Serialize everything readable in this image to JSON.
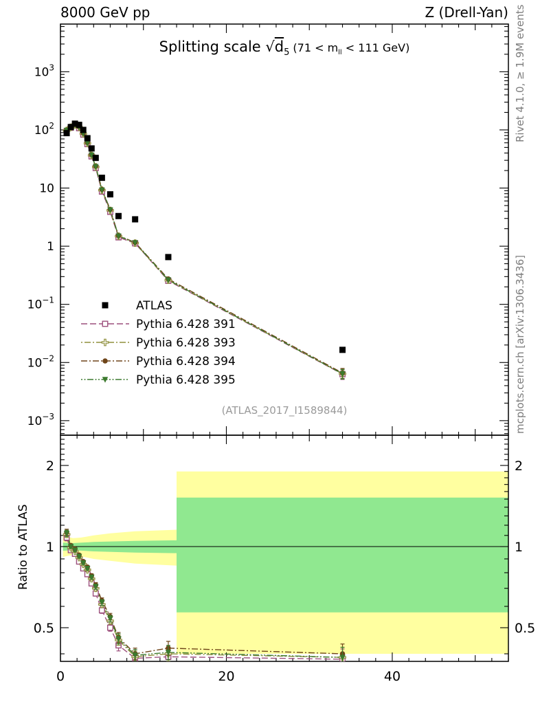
{
  "header": {
    "left": "8000 GeV pp",
    "right": "Z (Drell-Yan)"
  },
  "title": {
    "prefix": "Splitting scale ",
    "sqrt": "√",
    "radicand": "d",
    "radicand_sub": "5",
    "cut_pre": "(71 < m",
    "cut_sub": "ll",
    "cut_post": " < 111 GeV)"
  },
  "side_text": {
    "top": "Rivet 4.1.0, ≥ 1.9M events",
    "bottom": "mcplots.cern.ch [arXiv:1306.3436]"
  },
  "watermark": "(ATLAS_2017_I1589844)",
  "ratio_label": "Ratio to ATLAS",
  "colors": {
    "band_yellow": "#ffffa0",
    "band_green": "#90e890",
    "frame": "#000000",
    "gray_text": "#7d7d7d"
  },
  "chart_data": {
    "type": "scatter",
    "title": "Splitting scale sqrt(d5) (71 < mll < 111 GeV)",
    "x_axis": {
      "min": 0,
      "max": 54,
      "major_ticks": [
        0,
        20,
        40
      ],
      "major_labels": [
        "0",
        "20",
        "40"
      ],
      "medium_ticks": [
        10,
        30,
        50
      ],
      "minor_step": 2
    },
    "main_axis": {
      "scale": "log",
      "log_min": -3.25,
      "log_max": 3.82,
      "tick_labels": [
        {
          "base": "10",
          "sup": "3",
          "value": 1000
        },
        {
          "base": "10",
          "sup": "2",
          "value": 100
        },
        {
          "base": "10",
          "sup": "",
          "value": 10
        },
        {
          "base": "1",
          "sup": "",
          "value": 1
        },
        {
          "base": "10",
          "sup": "−1",
          "value": 0.1
        },
        {
          "base": "10",
          "sup": "−2",
          "value": 0.01
        },
        {
          "base": "10",
          "sup": "−3",
          "value": 0.001
        }
      ]
    },
    "ratio_axis": {
      "scale": "log",
      "min": 0.375,
      "max": 2.59,
      "ticks": [
        {
          "label": "2",
          "value": 2
        },
        {
          "label": "1",
          "value": 1
        },
        {
          "label": "0.5",
          "value": 0.5
        }
      ],
      "minor_ticks": [
        0.4,
        0.6,
        0.7,
        0.8,
        0.9,
        1.1,
        1.2,
        1.3,
        1.4,
        1.5,
        1.6,
        1.7,
        1.8,
        1.9,
        2.1,
        2.2,
        2.3,
        2.4,
        2.5
      ]
    },
    "x": [
      0.75,
      1.25,
      1.75,
      2.25,
      2.75,
      3.25,
      3.75,
      4.25,
      5,
      6,
      7,
      9,
      13,
      34
    ],
    "reference": {
      "name": "ATLAS",
      "marker": "square-filled",
      "color": "#000000",
      "y": [
        88,
        112,
        128,
        122,
        100,
        72,
        48,
        33,
        15,
        7.8,
        3.3,
        2.9,
        0.65,
        0.0165
      ]
    },
    "series": [
      {
        "name": "Pythia 6.428 391",
        "color": "#9c4f7c",
        "marker": "square-open",
        "dash": "9 4",
        "y": [
          95,
          109,
          120,
          107,
          83,
          57,
          35,
          22.1,
          8.7,
          3.9,
          1.42,
          1.12,
          0.254,
          0.0063
        ],
        "ratio": [
          1.08,
          0.97,
          0.94,
          0.88,
          0.83,
          0.79,
          0.73,
          0.67,
          0.58,
          0.5,
          0.43,
          0.385,
          0.39,
          0.382
        ],
        "ratio_err": [
          0.03,
          0.012,
          0.01,
          0.01,
          0.01,
          0.01,
          0.012,
          0.015,
          0.015,
          0.015,
          0.02,
          0.02,
          0.025,
          0.035
        ],
        "y_err_last": 0.0012
      },
      {
        "name": "Pythia 6.428 393",
        "color": "#8f8f3c",
        "marker": "plus-open",
        "dash": "2 3 9 3",
        "y": [
          97.5,
          111,
          123,
          111,
          86,
          59,
          36.5,
          23.1,
          9.2,
          4.13,
          1.49,
          1.13,
          0.26,
          0.0064
        ],
        "ratio": [
          1.11,
          0.99,
          0.96,
          0.91,
          0.86,
          0.82,
          0.76,
          0.7,
          0.61,
          0.53,
          0.45,
          0.39,
          0.4,
          0.388
        ],
        "ratio_err": [
          0.03,
          0.012,
          0.01,
          0.01,
          0.01,
          0.01,
          0.012,
          0.015,
          0.015,
          0.015,
          0.02,
          0.02,
          0.025,
          0.035
        ],
        "y_err_last": 0.0012
      },
      {
        "name": "Pythia 6.428 394",
        "color": "#6e4418",
        "marker": "circle-filled",
        "dash": "9 3 2 3",
        "y": [
          99.5,
          113,
          125,
          113,
          88,
          60.5,
          37.4,
          23.8,
          9.5,
          4.29,
          1.52,
          1.16,
          0.273,
          0.0066
        ],
        "ratio": [
          1.13,
          1.01,
          0.98,
          0.93,
          0.88,
          0.84,
          0.78,
          0.72,
          0.63,
          0.55,
          0.46,
          0.4,
          0.42,
          0.4
        ],
        "ratio_err": [
          0.03,
          0.012,
          0.01,
          0.01,
          0.01,
          0.01,
          0.012,
          0.015,
          0.015,
          0.015,
          0.02,
          0.02,
          0.025,
          0.035
        ],
        "y_err_last": 0.0013
      },
      {
        "name": "Pythia 6.428 395",
        "color": "#3c7a2e",
        "marker": "triangle-down-filled",
        "dash": "2 2.5 2 2.5 9 2.5",
        "y": [
          98.5,
          112,
          124,
          112,
          87,
          59.8,
          37,
          23.4,
          9.3,
          4.21,
          1.5,
          1.15,
          0.263,
          0.0064
        ],
        "ratio": [
          1.12,
          1,
          0.97,
          0.92,
          0.87,
          0.83,
          0.77,
          0.71,
          0.62,
          0.54,
          0.455,
          0.395,
          0.405,
          0.388
        ],
        "ratio_err": [
          0.03,
          0.012,
          0.01,
          0.01,
          0.01,
          0.01,
          0.012,
          0.015,
          0.015,
          0.015,
          0.02,
          0.02,
          0.025,
          0.035
        ],
        "y_err_last": 0.0012
      }
    ],
    "ratio_bands": {
      "yellow": {
        "color": "#ffffa0",
        "x": [
          0.3,
          1,
          1.5,
          2.5,
          4,
          6,
          9,
          14,
          14,
          54
        ],
        "hi": [
          1.1,
          1.085,
          1.075,
          1.08,
          1.1,
          1.12,
          1.14,
          1.155,
          1.9,
          1.9
        ],
        "lo": [
          0.915,
          0.925,
          0.93,
          0.92,
          0.9,
          0.885,
          0.865,
          0.85,
          0.4,
          0.4
        ]
      },
      "green": {
        "color": "#90e890",
        "x": [
          0.3,
          1.5,
          4,
          9,
          14,
          14,
          54
        ],
        "hi": [
          1.035,
          1.03,
          1.04,
          1.05,
          1.055,
          1.52,
          1.52
        ],
        "lo": [
          0.965,
          0.97,
          0.96,
          0.95,
          0.945,
          0.57,
          0.57
        ]
      }
    }
  }
}
